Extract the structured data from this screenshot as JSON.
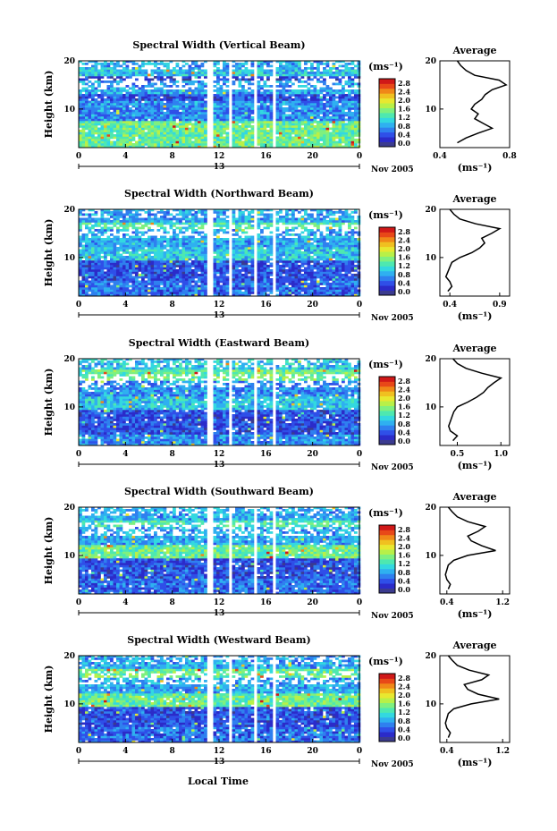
{
  "figure": {
    "xlabel": "Local Time",
    "date_label": "Nov 2005",
    "x_ticks": [
      "0",
      "4",
      "8",
      "12",
      "16",
      "20",
      "0"
    ],
    "day_tick": "13",
    "y_ticks": [
      "20",
      "10"
    ],
    "ylabel": "Height (km)",
    "colorbar_unit": "(ms⁻¹)",
    "colorbar_ticks": [
      "2.8",
      "2.4",
      "2.0",
      "1.6",
      "1.2",
      "0.8",
      "0.4",
      "0.0"
    ],
    "profile_title": "Average",
    "profile_xlabel": "(ms⁻¹)"
  },
  "colors": {
    "colorbar": [
      "#3b3b8f",
      "#2b2bc9",
      "#2f4fe8",
      "#2f80ef",
      "#2fb0f0",
      "#33d8e0",
      "#4ee8b0",
      "#7ff07f",
      "#b8f048",
      "#e8e830",
      "#f0c020",
      "#f08818",
      "#e84818",
      "#d01818"
    ]
  },
  "panels": [
    {
      "title": "Spectral Width (Vertical Beam)"
    },
    {
      "title": "Spectral Width (Northward Beam)"
    },
    {
      "title": "Spectral Width (Eastward Beam)"
    },
    {
      "title": "Spectral Width (Southward Beam)"
    },
    {
      "title": "Spectral Width (Westward Beam)"
    }
  ],
  "chart_data": [
    {
      "type": "heatmap",
      "title": "Spectral Width (Vertical Beam)",
      "xlabel": "",
      "ylabel": "Height (km)",
      "x_range_hours": [
        0,
        24
      ],
      "y_range_km": [
        2,
        20
      ],
      "value_range": [
        0,
        3.0
      ],
      "data_gaps_hours": [
        [
          10.9,
          11.5
        ],
        [
          12.7,
          13.0
        ],
        [
          13.7,
          13.9
        ],
        [
          14.8,
          15.0
        ],
        [
          16.4,
          16.7
        ]
      ],
      "bands": [
        {
          "km": [
            2,
            7.5
          ],
          "level": 0.5
        },
        {
          "km": [
            7.5,
            11.5
          ],
          "level": 0.25
        },
        {
          "km": [
            11.5,
            13
          ],
          "level": 0.15
        },
        {
          "km": [
            13,
            15.5
          ],
          "level": 0.3
        },
        {
          "km": [
            15.5,
            16.5
          ],
          "level": 0.1
        },
        {
          "km": [
            16.5,
            18
          ],
          "level": 0.35
        },
        {
          "km": [
            18,
            20
          ],
          "level": 0.3
        }
      ],
      "profile": {
        "title": "Average",
        "xlabel": "(ms⁻¹)",
        "x_ticks": [
          "0.4",
          "0.8"
        ],
        "x_range": [
          0.4,
          0.8
        ],
        "height_km": [
          3,
          4,
          5,
          6,
          7,
          8,
          9,
          10,
          11,
          12,
          13,
          14,
          15,
          16,
          17,
          18,
          19,
          20
        ],
        "value": [
          0.5,
          0.55,
          0.62,
          0.7,
          0.65,
          0.6,
          0.62,
          0.58,
          0.6,
          0.64,
          0.66,
          0.7,
          0.78,
          0.74,
          0.6,
          0.55,
          0.52,
          0.5
        ]
      }
    },
    {
      "type": "heatmap",
      "title": "Spectral Width (Northward Beam)",
      "xlabel": "",
      "ylabel": "Height (km)",
      "x_range_hours": [
        0,
        24
      ],
      "y_range_km": [
        2,
        20
      ],
      "value_range": [
        0,
        3.0
      ],
      "data_gaps_hours": [
        [
          10.9,
          11.5
        ],
        [
          12.7,
          13.0
        ],
        [
          13.7,
          13.9
        ],
        [
          14.8,
          15.0
        ],
        [
          16.4,
          16.7
        ]
      ],
      "bands": [
        {
          "km": [
            2,
            5
          ],
          "level": 0.2
        },
        {
          "km": [
            5,
            9
          ],
          "level": 0.15
        },
        {
          "km": [
            9,
            12
          ],
          "level": 0.35
        },
        {
          "km": [
            12,
            15.5
          ],
          "level": 0.3
        },
        {
          "km": [
            15.5,
            17
          ],
          "level": 0.45
        },
        {
          "km": [
            17,
            20
          ],
          "level": 0.3
        }
      ],
      "profile": {
        "title": "Average",
        "xlabel": "(ms⁻¹)",
        "x_ticks": [
          "0.4",
          "0.9"
        ],
        "x_range": [
          0.3,
          1.0
        ],
        "height_km": [
          3,
          4,
          5,
          6,
          7,
          8,
          9,
          10,
          11,
          12,
          13,
          14,
          15,
          16,
          17,
          18,
          19,
          20
        ],
        "value": [
          0.38,
          0.42,
          0.4,
          0.36,
          0.38,
          0.4,
          0.42,
          0.5,
          0.62,
          0.7,
          0.75,
          0.72,
          0.82,
          0.9,
          0.66,
          0.5,
          0.44,
          0.4
        ]
      }
    },
    {
      "type": "heatmap",
      "title": "Spectral Width (Eastward Beam)",
      "xlabel": "",
      "ylabel": "Height (km)",
      "x_range_hours": [
        0,
        24
      ],
      "y_range_km": [
        2,
        20
      ],
      "value_range": [
        0,
        3.0
      ],
      "data_gaps_hours": [
        [
          10.9,
          11.5
        ],
        [
          12.7,
          13.0
        ],
        [
          13.7,
          13.9
        ],
        [
          14.8,
          15.0
        ],
        [
          16.4,
          16.7
        ]
      ],
      "bands": [
        {
          "km": [
            2,
            4
          ],
          "level": 0.25
        },
        {
          "km": [
            4,
            9
          ],
          "level": 0.15
        },
        {
          "km": [
            9,
            12
          ],
          "level": 0.35
        },
        {
          "km": [
            12,
            15
          ],
          "level": 0.25
        },
        {
          "km": [
            15,
            17.5
          ],
          "level": 0.5
        },
        {
          "km": [
            17.5,
            20
          ],
          "level": 0.35
        }
      ],
      "profile": {
        "title": "Average",
        "xlabel": "(ms⁻¹)",
        "x_ticks": [
          "0.5",
          "1.0"
        ],
        "x_range": [
          0.3,
          1.1
        ],
        "height_km": [
          3,
          4,
          5,
          6,
          7,
          8,
          9,
          10,
          11,
          12,
          13,
          14,
          15,
          16,
          17,
          18,
          19,
          20
        ],
        "value": [
          0.45,
          0.5,
          0.42,
          0.4,
          0.42,
          0.44,
          0.46,
          0.5,
          0.62,
          0.72,
          0.8,
          0.85,
          0.92,
          1.0,
          0.78,
          0.6,
          0.5,
          0.45
        ]
      }
    },
    {
      "type": "heatmap",
      "title": "Spectral Width (Southward Beam)",
      "xlabel": "",
      "ylabel": "Height (km)",
      "x_range_hours": [
        0,
        24
      ],
      "y_range_km": [
        2,
        20
      ],
      "value_range": [
        0,
        3.0
      ],
      "data_gaps_hours": [
        [
          10.9,
          11.5
        ],
        [
          12.7,
          13.0
        ],
        [
          13.7,
          13.9
        ],
        [
          14.8,
          15.0
        ],
        [
          16.4,
          16.7
        ]
      ],
      "bands": [
        {
          "km": [
            2,
            5
          ],
          "level": 0.2
        },
        {
          "km": [
            5,
            9
          ],
          "level": 0.15
        },
        {
          "km": [
            9,
            12
          ],
          "level": 0.5
        },
        {
          "km": [
            12,
            15.5
          ],
          "level": 0.3
        },
        {
          "km": [
            15.5,
            17
          ],
          "level": 0.45
        },
        {
          "km": [
            17,
            20
          ],
          "level": 0.3
        }
      ],
      "profile": {
        "title": "Average",
        "xlabel": "(ms⁻¹)",
        "x_ticks": [
          "0.4",
          "1.2"
        ],
        "x_range": [
          0.3,
          1.3
        ],
        "height_km": [
          3,
          4,
          5,
          6,
          7,
          8,
          9,
          10,
          11,
          12,
          13,
          14,
          15,
          16,
          17,
          18,
          19,
          20
        ],
        "value": [
          0.42,
          0.45,
          0.4,
          0.38,
          0.4,
          0.42,
          0.5,
          0.7,
          1.1,
          0.9,
          0.75,
          0.7,
          0.85,
          0.95,
          0.7,
          0.55,
          0.48,
          0.42
        ]
      }
    },
    {
      "type": "heatmap",
      "title": "Spectral Width (Westward Beam)",
      "xlabel": "Local Time",
      "ylabel": "Height (km)",
      "x_range_hours": [
        0,
        24
      ],
      "y_range_km": [
        2,
        20
      ],
      "value_range": [
        0,
        3.0
      ],
      "data_gaps_hours": [
        [
          10.9,
          11.5
        ],
        [
          12.7,
          13.0
        ],
        [
          13.7,
          13.9
        ],
        [
          14.8,
          15.0
        ],
        [
          16.4,
          16.7
        ]
      ],
      "bands": [
        {
          "km": [
            2,
            5
          ],
          "level": 0.2
        },
        {
          "km": [
            5,
            9
          ],
          "level": 0.15
        },
        {
          "km": [
            9,
            12
          ],
          "level": 0.5
        },
        {
          "km": [
            12,
            15
          ],
          "level": 0.3
        },
        {
          "km": [
            15,
            17
          ],
          "level": 0.5
        },
        {
          "km": [
            17,
            20
          ],
          "level": 0.3
        }
      ],
      "profile": {
        "title": "Average",
        "xlabel": "(ms⁻¹)",
        "x_ticks": [
          "0.4",
          "1.2"
        ],
        "x_range": [
          0.3,
          1.3
        ],
        "height_km": [
          3,
          4,
          5,
          6,
          7,
          8,
          9,
          10,
          11,
          12,
          13,
          14,
          15,
          16,
          17,
          18,
          19,
          20
        ],
        "value": [
          0.42,
          0.45,
          0.4,
          0.38,
          0.4,
          0.42,
          0.5,
          0.75,
          1.15,
          0.85,
          0.7,
          0.65,
          0.9,
          1.0,
          0.72,
          0.55,
          0.48,
          0.42
        ]
      }
    }
  ]
}
